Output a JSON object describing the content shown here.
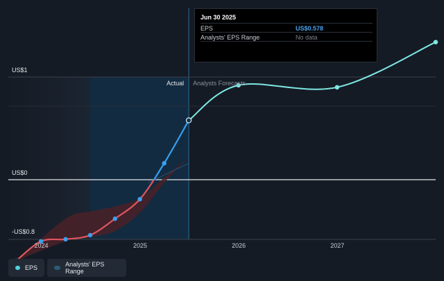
{
  "tooltip": {
    "date": "Jun 30 2025",
    "rows": [
      {
        "label": "EPS",
        "value": "US$0.578"
      },
      {
        "label": "Analysts' EPS Range",
        "value": "No data"
      }
    ]
  },
  "legend": {
    "eps_label": "EPS",
    "range_label": "Analysts' EPS Range"
  },
  "colors": {
    "background": "#151b24",
    "past_band": "#1b2431",
    "actual_region": "#13324a",
    "eps_past_negative": "#e0565f",
    "eps_past_positive": "#35a0f0",
    "forecast": "#7fe8e6",
    "range_band": "#4a2128",
    "legend_eps_dot": "#4fd1d9",
    "legend_range_dot": "#2d5b70"
  },
  "chart_data": {
    "type": "line",
    "y_tick_labels": [
      "US$1",
      "US$0",
      "-US$0.8"
    ],
    "x_tick_labels": [
      "2024",
      "2025",
      "2026",
      "2027"
    ],
    "region_labels": {
      "actual": "Actual",
      "forecast": "Analysts Forecasts"
    },
    "ylim": [
      -0.8,
      1.0
    ],
    "xlim": [
      "2023-09-01",
      "2027-12-31"
    ],
    "series": [
      {
        "name": "EPS",
        "points": [
          {
            "x": "2023-09-30",
            "y": -0.79
          },
          {
            "x": "2023-12-31",
            "y": -0.6
          },
          {
            "x": "2024-03-31",
            "y": -0.58
          },
          {
            "x": "2024-06-30",
            "y": -0.54
          },
          {
            "x": "2024-09-30",
            "y": -0.38
          },
          {
            "x": "2024-12-31",
            "y": -0.19
          },
          {
            "x": "2025-03-31",
            "y": 0.16
          },
          {
            "x": "2025-06-30",
            "y": 0.578
          }
        ]
      },
      {
        "name": "Analysts Forecasts",
        "points": [
          {
            "x": "2025-06-30",
            "y": 0.578
          },
          {
            "x": "2025-12-31",
            "y": 0.92
          },
          {
            "x": "2026-12-31",
            "y": 0.9
          },
          {
            "x": "2027-12-31",
            "y": 1.34
          }
        ]
      }
    ],
    "range_band": {
      "x": [
        "2023-09-30",
        "2024-03-31",
        "2024-06-30",
        "2024-09-30",
        "2024-12-31",
        "2025-03-31",
        "2025-06-30"
      ],
      "low": [
        -0.79,
        -0.6,
        -0.56,
        -0.5,
        -0.32,
        -0.03,
        0.22
      ],
      "high": [
        -0.79,
        -0.38,
        -0.31,
        -0.26,
        -0.18,
        0.02,
        0.22
      ]
    },
    "highlight": {
      "x": "2025-06-30",
      "y": 0.578
    }
  }
}
